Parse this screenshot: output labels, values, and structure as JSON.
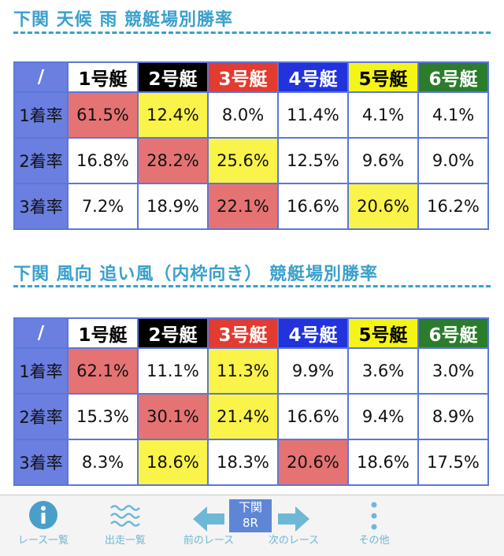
{
  "section1": {
    "title": "下関 天候 雨 競艇場別勝率",
    "corner": "/",
    "headers": [
      "1号艇",
      "2号艇",
      "3号艇",
      "4号艇",
      "5号艇",
      "6号艇"
    ],
    "rows": [
      {
        "label": "1着率",
        "values": [
          "61.5%",
          "12.4%",
          "8.0%",
          "11.4%",
          "4.1%",
          "4.1%"
        ]
      },
      {
        "label": "2着率",
        "values": [
          "16.8%",
          "28.2%",
          "25.6%",
          "12.5%",
          "9.6%",
          "9.0%"
        ]
      },
      {
        "label": "3着率",
        "values": [
          "7.2%",
          "18.9%",
          "22.1%",
          "16.6%",
          "20.6%",
          "16.2%"
        ]
      }
    ]
  },
  "section2": {
    "title": "下関 風向 追い風（内枠向き） 競艇場別勝率",
    "corner": "/",
    "headers": [
      "1号艇",
      "2号艇",
      "3号艇",
      "4号艇",
      "5号艇",
      "6号艇"
    ],
    "rows": [
      {
        "label": "1着率",
        "values": [
          "62.1%",
          "11.1%",
          "11.3%",
          "9.9%",
          "3.6%",
          "3.0%"
        ]
      },
      {
        "label": "2着率",
        "values": [
          "15.3%",
          "30.1%",
          "21.4%",
          "16.6%",
          "9.4%",
          "8.9%"
        ]
      },
      {
        "label": "3着率",
        "values": [
          "8.3%",
          "18.6%",
          "18.3%",
          "20.6%",
          "18.6%",
          "17.5%"
        ]
      }
    ]
  },
  "nav": {
    "race_list": "レース一覧",
    "entry_list": "出走一覧",
    "prev_race": "前のレース",
    "venue": "下関",
    "race_no": "8R",
    "next_race": "次のレース",
    "other": "その他"
  },
  "colors": {
    "accent": "#3aa0cc",
    "header_blue": "#6a7fe0",
    "highlight_red": "#e57373",
    "highlight_yellow": "#f9f34a"
  }
}
